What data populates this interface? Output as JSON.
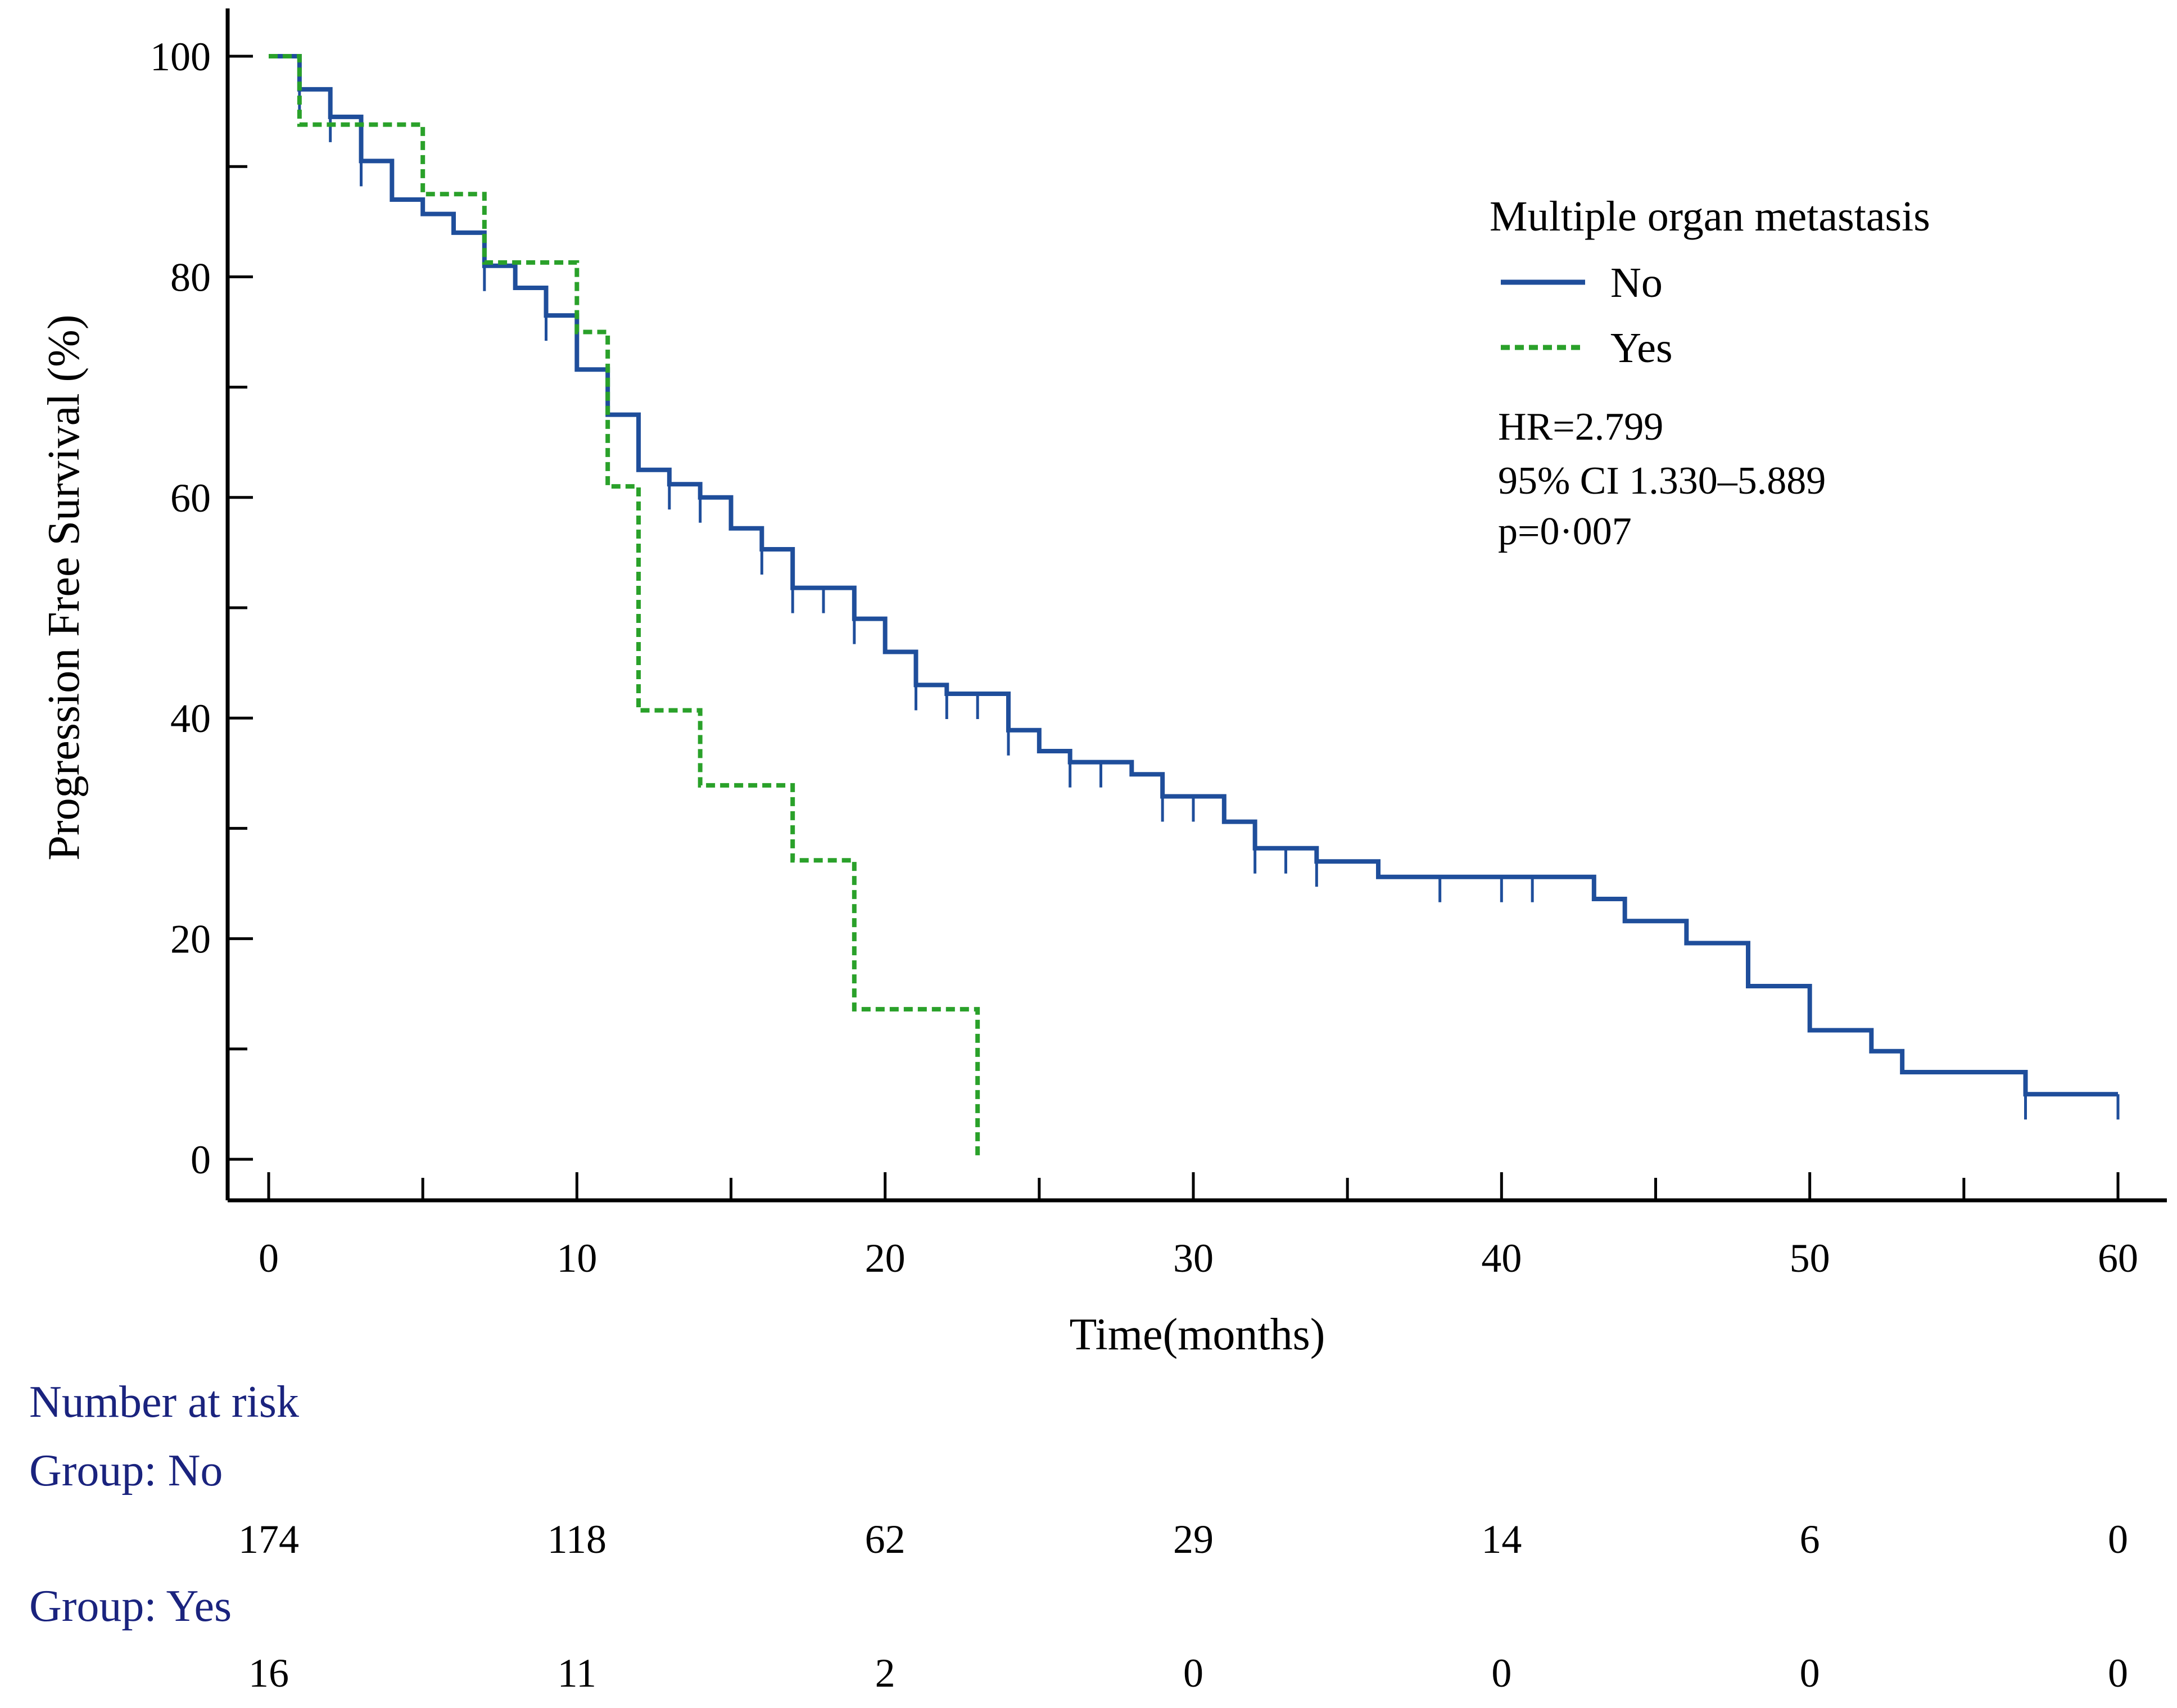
{
  "chart_data": {
    "type": "kaplan-meier",
    "title": "",
    "xlabel": "Time(months)",
    "ylabel": "Progression Free Survival (%)",
    "xlim": [
      0,
      60
    ],
    "ylim": [
      0,
      100
    ],
    "xticks": [
      0,
      10,
      20,
      30,
      40,
      50,
      60
    ],
    "yticks": [
      0,
      20,
      40,
      60,
      80,
      100
    ],
    "legend": {
      "title": "Multiple organ metastasis",
      "position": "top-right"
    },
    "stats": {
      "hr": "HR=2.799",
      "ci": "95% CI 1.330–5.889",
      "p": "p=0·007"
    },
    "series": [
      {
        "name": "No",
        "color": "#1f4e9b",
        "style": "solid",
        "steps": [
          [
            0,
            100
          ],
          [
            1,
            97
          ],
          [
            2,
            94.5
          ],
          [
            3,
            90.5
          ],
          [
            4,
            87
          ],
          [
            5,
            85.7
          ],
          [
            6,
            84
          ],
          [
            7,
            81
          ],
          [
            8,
            79
          ],
          [
            9,
            76.5
          ],
          [
            10,
            71.6
          ],
          [
            11,
            67.5
          ],
          [
            12,
            62.5
          ],
          [
            13,
            61.2
          ],
          [
            14,
            60
          ],
          [
            15,
            57.2
          ],
          [
            16,
            55.3
          ],
          [
            17,
            51.8
          ],
          [
            19,
            49
          ],
          [
            20,
            46
          ],
          [
            21,
            43
          ],
          [
            22,
            42.2
          ],
          [
            24,
            38.9
          ],
          [
            25,
            37
          ],
          [
            26,
            36
          ],
          [
            28,
            34.9
          ],
          [
            29,
            32.9
          ],
          [
            31,
            30.6
          ],
          [
            32,
            28.2
          ],
          [
            34,
            27
          ],
          [
            36,
            25.6
          ],
          [
            43,
            23.6
          ],
          [
            44,
            21.6
          ],
          [
            46,
            19.6
          ],
          [
            48,
            15.7
          ],
          [
            50,
            11.7
          ],
          [
            52,
            9.8
          ],
          [
            53,
            7.9
          ],
          [
            57,
            5.9
          ],
          [
            60,
            5.9
          ]
        ],
        "censored": [
          [
            1,
            97
          ],
          [
            2,
            94.5
          ],
          [
            3,
            90.5
          ],
          [
            7,
            81
          ],
          [
            9,
            76.5
          ],
          [
            13,
            61.2
          ],
          [
            14,
            60
          ],
          [
            16,
            55.3
          ],
          [
            17,
            51.8
          ],
          [
            18,
            51.8
          ],
          [
            19,
            49
          ],
          [
            21,
            43
          ],
          [
            22,
            42.2
          ],
          [
            23,
            42.2
          ],
          [
            24,
            38.9
          ],
          [
            26,
            36
          ],
          [
            27,
            36
          ],
          [
            29,
            32.9
          ],
          [
            30,
            32.9
          ],
          [
            32,
            28.2
          ],
          [
            33,
            28.2
          ],
          [
            34,
            27
          ],
          [
            38,
            25.6
          ],
          [
            40,
            25.6
          ],
          [
            41,
            25.6
          ],
          [
            57,
            5.9
          ],
          [
            60,
            5.9
          ]
        ]
      },
      {
        "name": "Yes",
        "color": "#2aa12a",
        "style": "dashed",
        "steps": [
          [
            0,
            100
          ],
          [
            1,
            93.8
          ],
          [
            5,
            87.5
          ],
          [
            7,
            81.3
          ],
          [
            10,
            75
          ],
          [
            11,
            61
          ],
          [
            12,
            40.7
          ],
          [
            14,
            33.9
          ],
          [
            17,
            27.1
          ],
          [
            19,
            13.6
          ],
          [
            23,
            0
          ]
        ],
        "censored": []
      }
    ],
    "number_at_risk": {
      "title": "Number at risk",
      "times": [
        0,
        10,
        20,
        30,
        40,
        50,
        60
      ],
      "groups": [
        {
          "label": "Group: No",
          "values": [
            "174",
            "118",
            "62",
            "29",
            "14",
            "6",
            "0"
          ]
        },
        {
          "label": "Group: Yes",
          "values": [
            "16",
            "11",
            "2",
            "0",
            "0",
            "0",
            "0"
          ]
        }
      ]
    }
  },
  "colors": {
    "axis": "#000000",
    "risk_header": "#1a237e"
  }
}
